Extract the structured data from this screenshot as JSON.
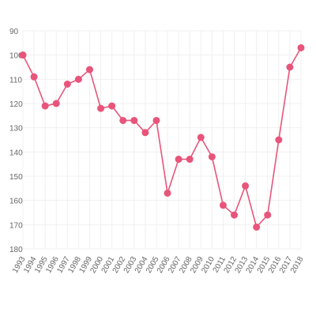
{
  "chart_data": {
    "type": "line",
    "title": "",
    "xlabel": "",
    "ylabel": "",
    "x": [
      "1993",
      "1994",
      "1995",
      "1996",
      "1997",
      "1998",
      "1999",
      "2000",
      "2001",
      "2002",
      "2003",
      "2004",
      "2005",
      "2006",
      "2007",
      "2008",
      "2009",
      "2010",
      "2011",
      "2012",
      "2013",
      "2014",
      "2015",
      "2016",
      "2017",
      "2018"
    ],
    "series": [
      {
        "values": [
          100,
          109,
          121,
          120,
          112,
          110,
          106,
          122,
          121,
          127,
          127,
          132,
          127,
          157,
          143,
          143,
          134,
          142,
          162,
          166,
          154,
          171,
          166,
          135,
          105,
          97
        ]
      }
    ],
    "yticks": [
      90,
      100,
      110,
      120,
      130,
      140,
      150,
      160,
      170,
      180
    ],
    "ylim": [
      90,
      180
    ],
    "y_reversed": true,
    "grid": true,
    "legend": "none",
    "colors": {
      "series": "#e8557a",
      "point_fill": "#e8557a",
      "grid": "#f0f0f0",
      "tick_text": "#666666"
    }
  }
}
